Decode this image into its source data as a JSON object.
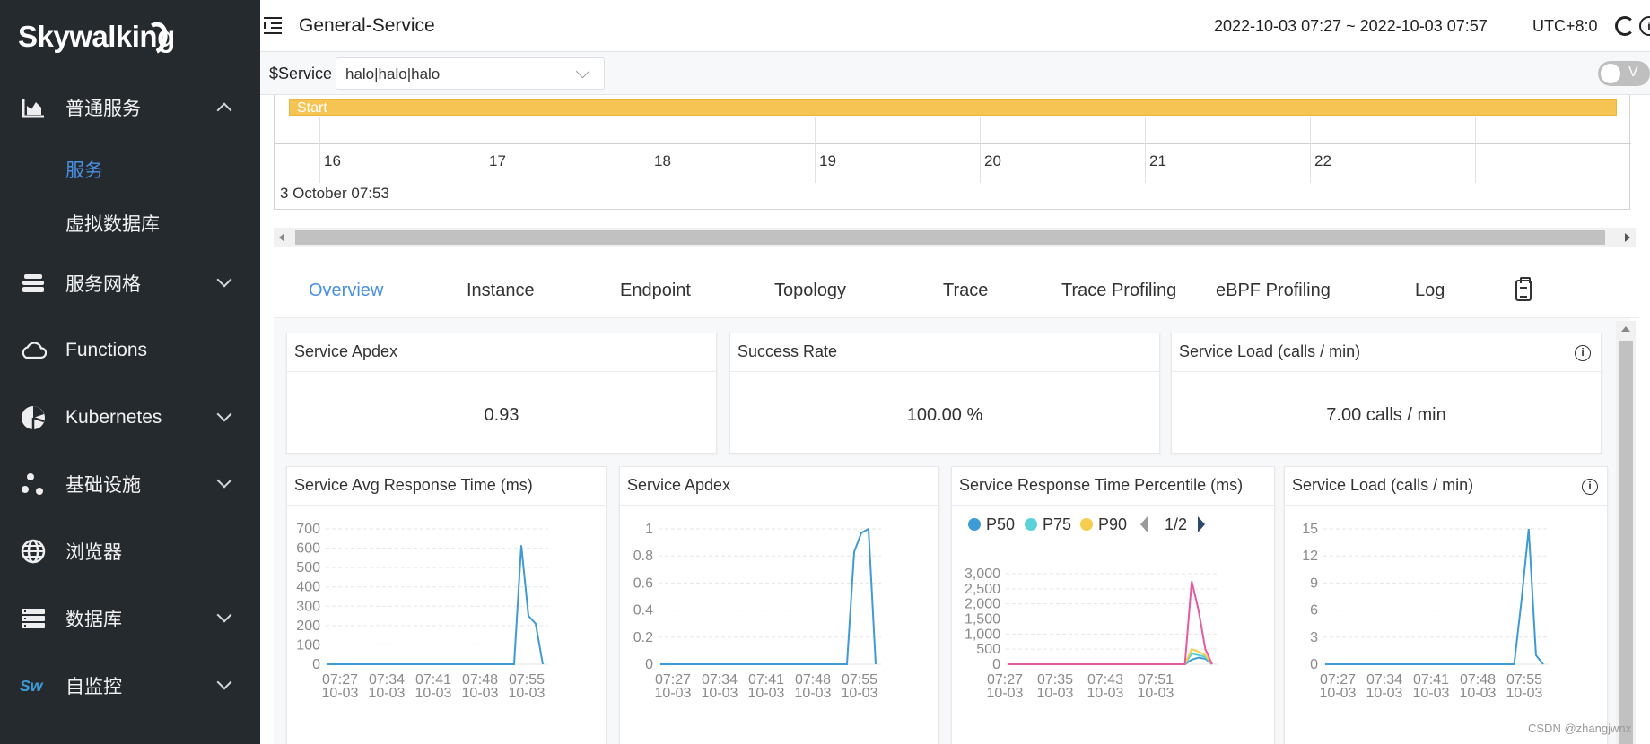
{
  "app": {
    "logo_text": "Skywalking"
  },
  "sidebar": {
    "items": [
      {
        "label": "普通服务",
        "icon": "chart-area-icon",
        "expanded": true
      },
      {
        "label": "服务网格",
        "icon": "layers-icon",
        "expanded": false
      },
      {
        "label": "Functions",
        "icon": "cloud-icon"
      },
      {
        "label": "Kubernetes",
        "icon": "pie-chart-icon",
        "expanded": false
      },
      {
        "label": "基础设施",
        "icon": "nodes-icon",
        "expanded": false
      },
      {
        "label": "浏览器",
        "icon": "globe-icon"
      },
      {
        "label": "数据库",
        "icon": "database-icon",
        "expanded": false
      },
      {
        "label": "自监控",
        "icon": "sw-icon",
        "expanded": false
      }
    ],
    "sub_items": [
      {
        "label": "服务",
        "active": true
      },
      {
        "label": "虚拟数据库",
        "active": false
      }
    ]
  },
  "header": {
    "title": "General-Service",
    "time_range": "2022-10-03 07:27 ~ 2022-10-03 07:57",
    "timezone": "UTC+8:0"
  },
  "service_bar": {
    "label": "$Service",
    "value": "halo|halo|halo",
    "toggle_label": "V"
  },
  "timeline": {
    "event_label": "Start",
    "ticks": [
      "16",
      "17",
      "18",
      "19",
      "20",
      "21",
      "22"
    ],
    "date_label": "3 October 07:53"
  },
  "tabs": [
    "Overview",
    "Instance",
    "Endpoint",
    "Topology",
    "Trace",
    "Trace Profiling",
    "eBPF Profiling",
    "Log"
  ],
  "active_tab": "Overview",
  "cards": {
    "apdex": {
      "title": "Service Apdex",
      "value": "0.93"
    },
    "success": {
      "title": "Success Rate",
      "value": "100.00 %"
    },
    "load": {
      "title": "Service Load (calls / min)",
      "value": "7.00 calls / min"
    }
  },
  "chart_titles": {
    "avg_rt": "Service Avg Response Time (ms)",
    "apdex": "Service Apdex",
    "percentile": "Service Response Time Percentile (ms)",
    "load": "Service Load (calls / min)"
  },
  "percentile_legend": {
    "items": [
      "P50",
      "P75",
      "P90"
    ],
    "page": "1/2"
  },
  "watermark": "CSDN @zhangjwnx",
  "chart_data": [
    {
      "type": "line",
      "title": "Service Avg Response Time (ms)",
      "x_ticks": [
        "07:27\n10-03",
        "07:34\n10-03",
        "07:41\n10-03",
        "07:48\n10-03",
        "07:55\n10-03"
      ],
      "y_ticks": [
        0,
        100,
        200,
        300,
        400,
        500,
        600,
        700
      ],
      "ylim": [
        0,
        700
      ],
      "x_range": [
        0,
        30
      ],
      "grid": true,
      "series": [
        {
          "color": "#3e9bd6",
          "points": [
            [
              0,
              0
            ],
            [
              26,
              0
            ],
            [
              27,
              615
            ],
            [
              28,
              250
            ],
            [
              29,
              210
            ],
            [
              30,
              0
            ]
          ]
        }
      ]
    },
    {
      "type": "line",
      "title": "Service Apdex",
      "x_ticks": [
        "07:27\n10-03",
        "07:34\n10-03",
        "07:41\n10-03",
        "07:48\n10-03",
        "07:55\n10-03"
      ],
      "y_ticks": [
        0,
        0.2,
        0.4,
        0.6,
        0.8,
        1
      ],
      "ylim": [
        0,
        1
      ],
      "x_range": [
        0,
        30
      ],
      "grid": true,
      "series": [
        {
          "color": "#3e9bd6",
          "points": [
            [
              0,
              0
            ],
            [
              26,
              0
            ],
            [
              27,
              0.83
            ],
            [
              28,
              0.97
            ],
            [
              29,
              1
            ],
            [
              30,
              0
            ]
          ]
        }
      ]
    },
    {
      "type": "line",
      "title": "Service Response Time Percentile (ms)",
      "x_ticks": [
        "07:27\n10-03",
        "07:35\n10-03",
        "07:43\n10-03",
        "07:51\n10-03"
      ],
      "y_ticks": [
        "0",
        "500",
        "1,000",
        "1,500",
        "2,000",
        "2,500",
        "3,000"
      ],
      "ylim": [
        0,
        3000
      ],
      "x_range": [
        0,
        30
      ],
      "grid": true,
      "series": [
        {
          "name": "P50",
          "color": "#3e9bd6",
          "points": [
            [
              0,
              0
            ],
            [
              26,
              0
            ],
            [
              27,
              150
            ],
            [
              28,
              220
            ],
            [
              29,
              180
            ],
            [
              30,
              0
            ]
          ]
        },
        {
          "name": "P75",
          "color": "#5bd2d8",
          "points": [
            [
              0,
              0
            ],
            [
              26,
              0
            ],
            [
              27,
              350
            ],
            [
              28,
              300
            ],
            [
              29,
              250
            ],
            [
              30,
              0
            ]
          ]
        },
        {
          "name": "P90",
          "color": "#f6cd4c",
          "points": [
            [
              0,
              0
            ],
            [
              26,
              0
            ],
            [
              27,
              500
            ],
            [
              28,
              420
            ],
            [
              29,
              300
            ],
            [
              30,
              0
            ]
          ]
        },
        {
          "color": "#e45aa0",
          "points": [
            [
              0,
              0
            ],
            [
              26,
              0
            ],
            [
              27,
              2750
            ],
            [
              28,
              1800
            ],
            [
              29,
              500
            ],
            [
              30,
              0
            ]
          ]
        }
      ]
    },
    {
      "type": "line",
      "title": "Service Load (calls / min)",
      "x_ticks": [
        "07:27\n10-03",
        "07:34\n10-03",
        "07:41\n10-03",
        "07:48\n10-03",
        "07:55\n10-03"
      ],
      "y_ticks": [
        0,
        3,
        6,
        9,
        12,
        15
      ],
      "ylim": [
        0,
        15
      ],
      "x_range": [
        0,
        30
      ],
      "grid": true,
      "series": [
        {
          "color": "#3e9bd6",
          "points": [
            [
              0,
              0
            ],
            [
              26,
              0
            ],
            [
              27,
              7
            ],
            [
              28,
              15
            ],
            [
              29,
              1
            ],
            [
              30,
              0
            ]
          ]
        }
      ]
    }
  ]
}
